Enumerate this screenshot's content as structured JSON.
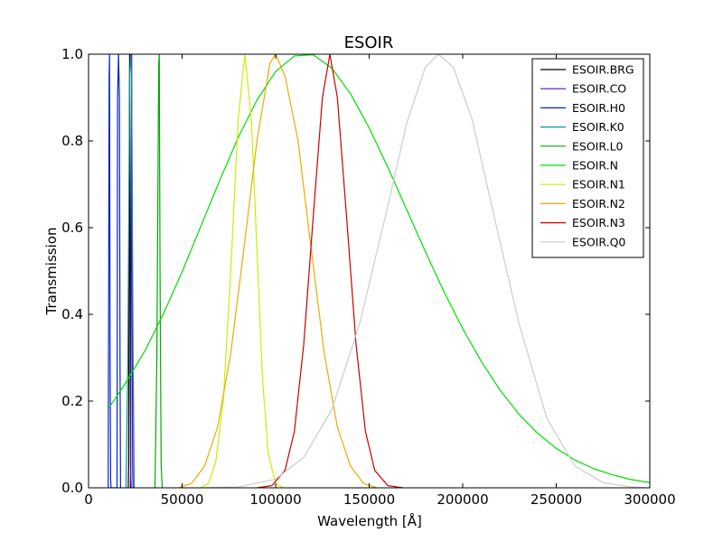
{
  "chart_data": {
    "type": "line",
    "title": "ESOIR",
    "xlabel": "Wavelength [Å]",
    "ylabel": "Transmission",
    "xlim": [
      0,
      300000
    ],
    "ylim": [
      0,
      1.0
    ],
    "xticks": [
      0,
      50000,
      100000,
      150000,
      200000,
      250000,
      300000
    ],
    "xtick_labels": [
      "0",
      "50000",
      "100000",
      "150000",
      "200000",
      "250000",
      "300000"
    ],
    "yticks": [
      0,
      0.2,
      0.4,
      0.6,
      0.8,
      1.0
    ],
    "ytick_labels": [
      "0.0",
      "0.2",
      "0.4",
      "0.6",
      "0.8",
      "1.0"
    ],
    "grid": false,
    "legend_position": "top-right",
    "series": [
      {
        "name": "ESOIR.BRG",
        "color": "#000000",
        "x": [
          21200,
          21450,
          21700,
          21950,
          22200,
          22450,
          22700
        ],
        "y": [
          0,
          0.05,
          0.6,
          1.0,
          0.6,
          0.05,
          0
        ]
      },
      {
        "name": "ESOIR.CO",
        "color": "#6600cc",
        "x": [
          22300,
          22550,
          22800,
          23050,
          23300,
          23550,
          23800
        ],
        "y": [
          0,
          0.05,
          0.6,
          1.0,
          0.6,
          0.05,
          0
        ]
      },
      {
        "name": "ESOIR.H0",
        "color": "#0022cc",
        "x": [
          10500,
          11000,
          11200,
          11500,
          11800,
          12000,
          15200,
          15500,
          16000,
          16500,
          16800,
          17100
        ],
        "y": [
          0,
          0.95,
          1.0,
          0.3,
          0.02,
          0,
          0,
          0.9,
          1.0,
          0.9,
          0.3,
          0
        ]
      },
      {
        "name": "ESOIR.K0",
        "color": "#009999",
        "x": [
          20000,
          21000,
          22000,
          22500,
          23000,
          23800,
          24400
        ],
        "y": [
          0,
          0.3,
          0.95,
          1.0,
          0.95,
          0.3,
          0
        ]
      },
      {
        "name": "ESOIR.L0",
        "color": "#00aa00",
        "x": [
          35500,
          36500,
          37500,
          37800,
          38200,
          38800,
          39400
        ],
        "y": [
          0,
          0.3,
          0.98,
          1.0,
          0.5,
          0.05,
          0
        ]
      },
      {
        "name": "ESOIR.N",
        "color": "#00dd00",
        "x": [
          11000,
          20000,
          30000,
          40000,
          50000,
          60000,
          70000,
          80000,
          90000,
          100000,
          110000,
          120000,
          130000,
          140000,
          150000,
          160000,
          170000,
          180000,
          190000,
          200000,
          210000,
          220000,
          230000,
          240000,
          250000,
          260000,
          270000,
          280000,
          290000,
          300000
        ],
        "y": [
          0.185,
          0.243,
          0.315,
          0.401,
          0.498,
          0.603,
          0.708,
          0.808,
          0.894,
          0.96,
          0.996,
          0.999,
          0.968,
          0.909,
          0.83,
          0.739,
          0.642,
          0.545,
          0.452,
          0.367,
          0.291,
          0.225,
          0.17,
          0.126,
          0.091,
          0.064,
          0.044,
          0.03,
          0.019,
          0.012
        ]
      },
      {
        "name": "ESOIR.N1",
        "color": "#ccee00",
        "x": [
          60000,
          64000,
          68000,
          72000,
          76000,
          80000,
          83500,
          87000,
          90000,
          93000,
          96000,
          100000,
          104000
        ],
        "y": [
          0,
          0.01,
          0.06,
          0.2,
          0.5,
          0.85,
          1.0,
          0.85,
          0.55,
          0.25,
          0.08,
          0.01,
          0
        ]
      },
      {
        "name": "ESOIR.N2",
        "color": "#eeaa00",
        "x": [
          48000,
          55000,
          62000,
          69000,
          76000,
          83000,
          90000,
          97000,
          100000,
          105000,
          112000,
          119000,
          126000,
          133000,
          140000,
          147000,
          154000
        ],
        "y": [
          0,
          0.01,
          0.05,
          0.14,
          0.31,
          0.55,
          0.8,
          0.98,
          1.0,
          0.95,
          0.8,
          0.55,
          0.31,
          0.14,
          0.05,
          0.01,
          0
        ]
      },
      {
        "name": "ESOIR.N3",
        "color": "#cc0000",
        "x": [
          90000,
          98000,
          105000,
          110000,
          115000,
          120000,
          125000,
          129000,
          133000,
          138000,
          143000,
          148000,
          153000,
          160000,
          168000
        ],
        "y": [
          0,
          0.005,
          0.04,
          0.13,
          0.33,
          0.62,
          0.9,
          1.0,
          0.9,
          0.62,
          0.33,
          0.13,
          0.04,
          0.005,
          0
        ]
      },
      {
        "name": "ESOIR.Q0",
        "color": "#cccccc",
        "x": [
          60000,
          80000,
          100000,
          115000,
          130000,
          145000,
          160000,
          170000,
          180000,
          187000,
          195000,
          205000,
          215000,
          230000,
          245000,
          260000,
          275000,
          290000,
          300000
        ],
        "y": [
          0,
          0.002,
          0.02,
          0.07,
          0.18,
          0.38,
          0.65,
          0.84,
          0.97,
          1.0,
          0.97,
          0.85,
          0.66,
          0.38,
          0.16,
          0.05,
          0.012,
          0.002,
          0
        ]
      }
    ]
  }
}
